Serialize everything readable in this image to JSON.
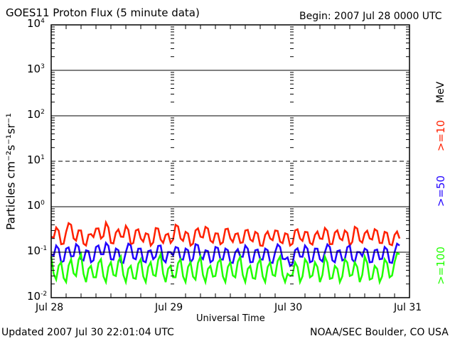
{
  "chart_data": {
    "type": "line",
    "title": "GOES11 Proton Flux (5 minute data)",
    "begin": "Begin: 2007 Jul 28 0000 UTC",
    "xlabel": "Universal Time",
    "ylabel": "Particles cm⁻²s⁻¹sr⁻¹",
    "unit_label": "MeV",
    "x_ticks": [
      "Jul 28",
      "Jul 29",
      "Jul 30",
      "Jul 31"
    ],
    "x_range_hours": [
      0,
      72
    ],
    "y_scale": "log",
    "ylim": [
      0.01,
      10000
    ],
    "y_ticks": [
      {
        "base": "10",
        "exp": "4"
      },
      {
        "base": "10",
        "exp": "3"
      },
      {
        "base": "10",
        "exp": "2"
      },
      {
        "base": "10",
        "exp": "1"
      },
      {
        "base": "10",
        "exp": "0"
      },
      {
        "base": "10",
        "exp": "-1"
      },
      {
        "base": "10",
        "exp": "-2"
      }
    ],
    "x_step_hours": 1,
    "series": [
      {
        "name": ">=10",
        "color": "#ff2000",
        "values": [
          0.22,
          0.35,
          0.15,
          0.28,
          0.4,
          0.18,
          0.3,
          0.14,
          0.25,
          0.33,
          0.2,
          0.45,
          0.16,
          0.27,
          0.22,
          0.38,
          0.15,
          0.3,
          0.2,
          0.26,
          0.14,
          0.34,
          0.19,
          0.24,
          0.16,
          0.4,
          0.2,
          0.28,
          0.14,
          0.3,
          0.22,
          0.36,
          0.18,
          0.26,
          0.15,
          0.32,
          0.2,
          0.25,
          0.16,
          0.3,
          0.19,
          0.28,
          0.14,
          0.24,
          0.2,
          0.3,
          0.17,
          0.26,
          0.14,
          0.3,
          0.2,
          0.28,
          0.16,
          0.24,
          0.2,
          0.34,
          0.15,
          0.27,
          0.2,
          0.3,
          0.14,
          0.36,
          0.18,
          0.26,
          0.2,
          0.32,
          0.16,
          0.28,
          0.15,
          0.24,
          0.2
        ]
      },
      {
        "name": ">=50",
        "color": "#2000ff",
        "values": [
          0.09,
          0.14,
          0.06,
          0.12,
          0.08,
          0.15,
          0.07,
          0.11,
          0.06,
          0.13,
          0.09,
          0.16,
          0.07,
          0.12,
          0.06,
          0.1,
          0.14,
          0.07,
          0.12,
          0.06,
          0.11,
          0.08,
          0.14,
          0.06,
          0.1,
          0.13,
          0.07,
          0.12,
          0.06,
          0.15,
          0.08,
          0.11,
          0.06,
          0.13,
          0.07,
          0.12,
          0.06,
          0.1,
          0.08,
          0.14,
          0.06,
          0.11,
          0.07,
          0.12,
          0.06,
          0.1,
          0.13,
          0.07,
          0.05,
          0.11,
          0.08,
          0.14,
          0.06,
          0.12,
          0.07,
          0.1,
          0.13,
          0.06,
          0.11,
          0.07,
          0.14,
          0.06,
          0.1,
          0.12,
          0.06,
          0.11,
          0.07,
          0.13,
          0.06,
          0.1,
          0.14
        ]
      },
      {
        "name": ">=100",
        "color": "#20ff00",
        "values": [
          0.08,
          0.025,
          0.06,
          0.022,
          0.07,
          0.03,
          0.09,
          0.022,
          0.05,
          0.028,
          0.07,
          0.022,
          0.06,
          0.03,
          0.08,
          0.022,
          0.05,
          0.026,
          0.07,
          0.022,
          0.06,
          0.03,
          0.09,
          0.022,
          0.05,
          0.028,
          0.07,
          0.022,
          0.06,
          0.025,
          0.08,
          0.022,
          0.05,
          0.03,
          0.07,
          0.022,
          0.06,
          0.028,
          0.08,
          0.022,
          0.05,
          0.026,
          0.07,
          0.022,
          0.06,
          0.03,
          0.08,
          0.022,
          0.03,
          0.06,
          0.022,
          0.07,
          0.028,
          0.06,
          0.022,
          0.08,
          0.026,
          0.05,
          0.022,
          0.07,
          0.03,
          0.06,
          0.022,
          0.08,
          0.025,
          0.05,
          0.022,
          0.07,
          0.028,
          0.06,
          0.09
        ]
      }
    ]
  },
  "footer": {
    "updated": "Updated 2007 Jul 30 22:01:04 UTC",
    "credit": "NOAA/SEC Boulder, CO USA"
  }
}
